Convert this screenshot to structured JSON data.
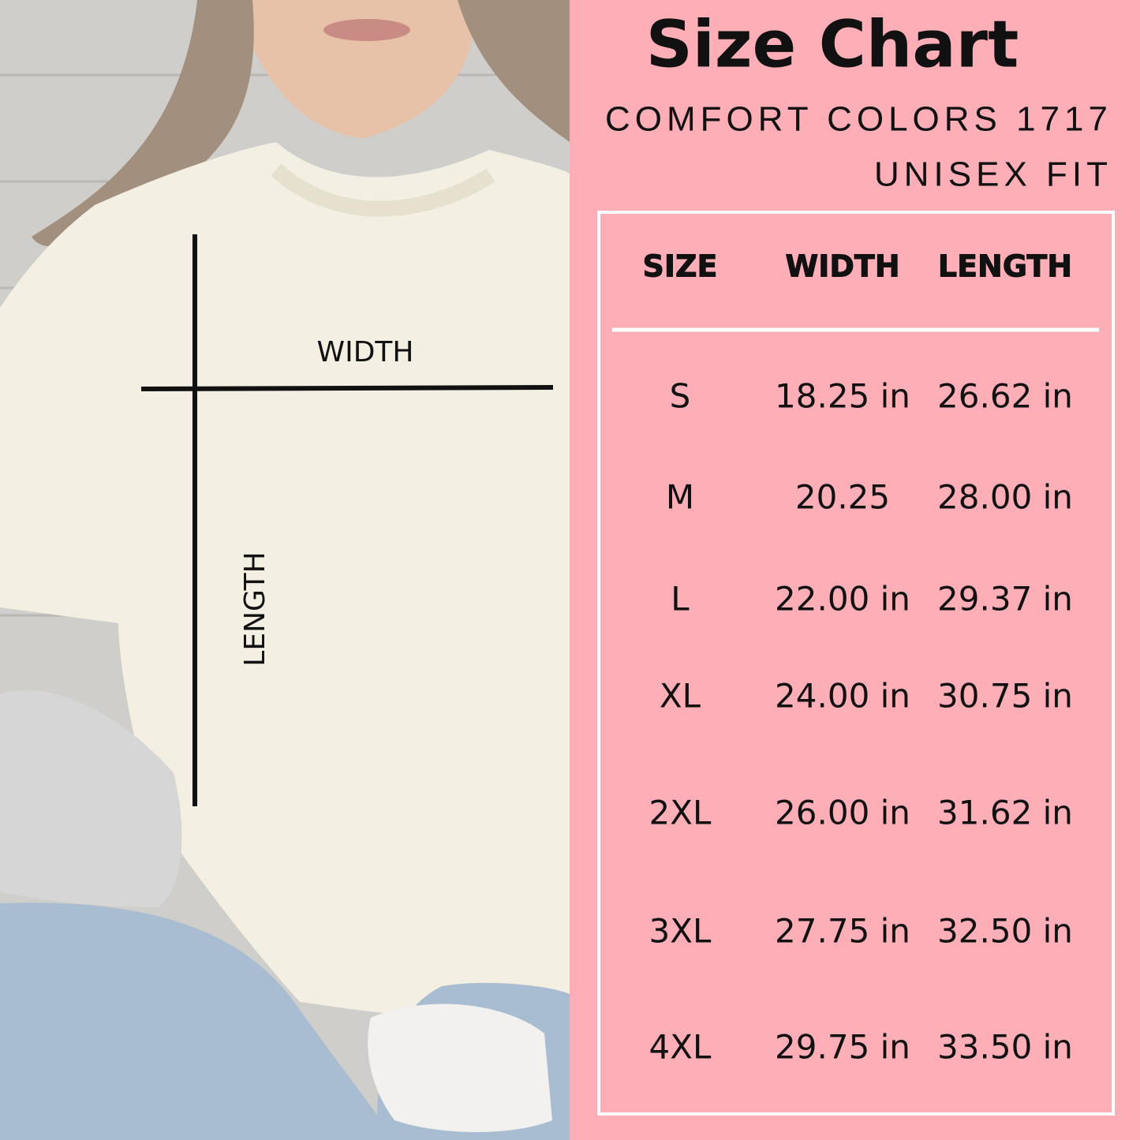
{
  "photo": {
    "width_label": "WIDTH",
    "length_label": "LENGTH"
  },
  "header": {
    "title": "Size Chart",
    "subtitle_lines": [
      "COMFORT COLORS 1717",
      "UNISEX FIT"
    ]
  },
  "table": {
    "columns": [
      "SIZE",
      "WIDTH",
      "LENGTH"
    ],
    "rows": [
      [
        "S",
        "18.25 in",
        "26.62 in"
      ],
      [
        "M",
        "20.25",
        "28.00 in"
      ],
      [
        "L",
        "22.00 in",
        "29.37 in"
      ],
      [
        "XL",
        "24.00 in",
        "30.75 in"
      ],
      [
        "2XL",
        "26.00 in",
        "31.62 in"
      ],
      [
        "3XL",
        "27.75 in",
        "32.50 in"
      ],
      [
        "4XL",
        "29.75 in",
        "33.50 in"
      ]
    ]
  }
}
